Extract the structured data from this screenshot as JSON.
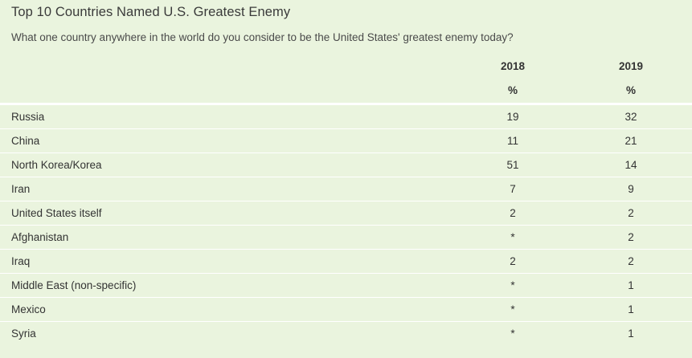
{
  "chart_data": {
    "type": "table",
    "title": "Top 10 Countries Named U.S. Greatest Enemy",
    "subtitle": "What one country anywhere in the world do you consider to be the United States' greatest enemy today?",
    "columns": [
      "2018",
      "2019"
    ],
    "unit_row": [
      "%",
      "%"
    ],
    "rows": [
      {
        "label": "Russia",
        "values": [
          "19",
          "32"
        ]
      },
      {
        "label": "China",
        "values": [
          "11",
          "21"
        ]
      },
      {
        "label": "North Korea/Korea",
        "values": [
          "51",
          "14"
        ]
      },
      {
        "label": "Iran",
        "values": [
          "7",
          "9"
        ]
      },
      {
        "label": "United States itself",
        "values": [
          "2",
          "2"
        ]
      },
      {
        "label": "Afghanistan",
        "values": [
          "*",
          "2"
        ]
      },
      {
        "label": "Iraq",
        "values": [
          "2",
          "2"
        ]
      },
      {
        "label": "Middle East (non-specific)",
        "values": [
          "*",
          "1"
        ]
      },
      {
        "label": "Mexico",
        "values": [
          "*",
          "1"
        ]
      },
      {
        "label": "Syria",
        "values": [
          "*",
          "1"
        ]
      }
    ]
  }
}
